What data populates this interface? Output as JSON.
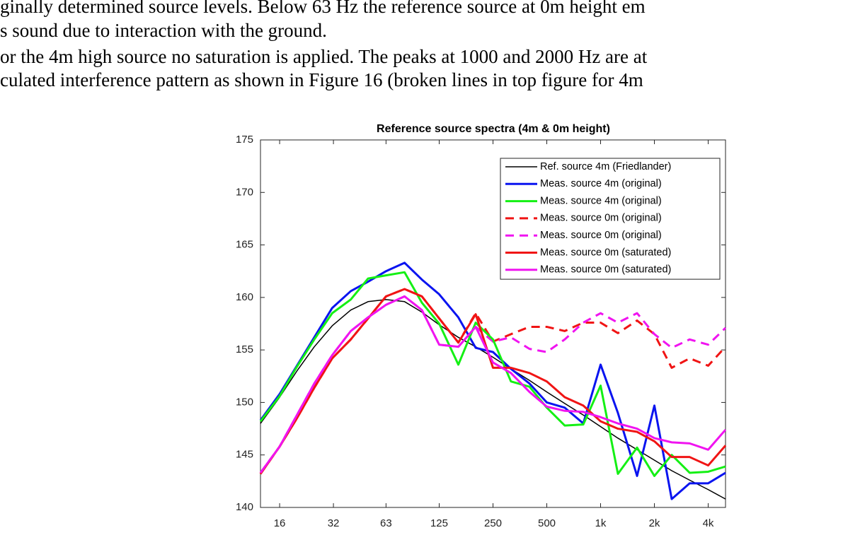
{
  "text": {
    "lines": [
      "ginally determined source levels. Below 63 Hz the reference source at 0m height em",
      "s sound due to interaction with the ground.",
      "or the 4m high source no saturation is applied. The peaks at 1000 and 2000 Hz are at",
      "culated interference pattern as shown in Figure 16 (broken lines in top figure for 4m"
    ]
  },
  "chart_data": {
    "type": "line",
    "title": "Reference source spectra (4m & 0m height)",
    "x": [
      12.5,
      16,
      20,
      25,
      31.5,
      40,
      50,
      63,
      80,
      100,
      125,
      160,
      200,
      250,
      315,
      400,
      500,
      630,
      800,
      1000,
      1250,
      1600,
      2000,
      2500,
      3150,
      4000,
      5000
    ],
    "xscale": "log",
    "xlim": [
      12.5,
      5000
    ],
    "xticks": [
      16,
      32,
      63,
      125,
      250,
      500,
      {
        "value": 1000,
        "label": "1k"
      },
      {
        "value": 2000,
        "label": "2k"
      },
      {
        "value": 4000,
        "label": "4k"
      }
    ],
    "ylim": [
      140,
      175
    ],
    "yticks": [
      140,
      145,
      150,
      155,
      160,
      165,
      170,
      175
    ],
    "grid": false,
    "legend": "top-right",
    "series": [
      {
        "name": "Ref. source 4m (Friedlander)",
        "color": "#000000",
        "dash": "solid",
        "width": 1.5,
        "values": [
          148,
          150.5,
          153,
          155.3,
          157.3,
          158.8,
          159.6,
          159.8,
          159.6,
          158.6,
          157.4,
          156.2,
          155.3,
          154.3,
          153.2,
          152.1,
          151,
          149.9,
          148.8,
          147.7,
          146.6,
          145.5,
          144.5,
          143.5,
          142.6,
          141.7,
          140.8
        ]
      },
      {
        "name": "Meas. source 4m (original)",
        "color": "#0a14f0",
        "dash": "solid",
        "width": 3,
        "values": [
          148.3,
          150.8,
          153.5,
          156.2,
          159,
          160.6,
          161.5,
          162.5,
          163.3,
          161.7,
          160.3,
          158.1,
          155.2,
          154.8,
          153.2,
          151.8,
          150,
          149.5,
          148,
          153.6,
          149,
          143,
          149.7,
          140.8,
          142.3,
          142.3,
          143.3
        ]
      },
      {
        "name": "Meas. source 4m (original)",
        "color": "#14f014",
        "dash": "solid",
        "width": 3,
        "values": [
          148.2,
          150.6,
          153.4,
          156,
          158.5,
          159.8,
          161.8,
          162.1,
          162.4,
          159.5,
          157.5,
          153.6,
          157.6,
          156,
          152,
          151.5,
          149.5,
          147.8,
          147.9,
          151.6,
          143.2,
          145.7,
          143,
          145,
          143.3,
          143.4,
          143.9
        ]
      },
      {
        "name": "Meas. source 0m (original)",
        "color": "#f01414",
        "dash": "dashed",
        "width": 3,
        "values": [
          143.2,
          145.8,
          148.5,
          151.4,
          154.2,
          156,
          158,
          160.1,
          160.8,
          160.1,
          158,
          155.7,
          158.5,
          155.8,
          156.5,
          157.2,
          157.2,
          156.8,
          157.6,
          157.6,
          156.6,
          157.8,
          156.5,
          153.3,
          154.2,
          153.5,
          155.3
        ]
      },
      {
        "name": "Meas. source 0m (original)",
        "color": "#f014f0",
        "dash": "dashed",
        "width": 3,
        "values": [
          143.3,
          145.8,
          148.8,
          151.8,
          154.5,
          156.8,
          158.1,
          159.3,
          160.1,
          158.8,
          155.5,
          155.3,
          157.2,
          155.8,
          156.2,
          155.1,
          154.8,
          156,
          157.6,
          158.5,
          157.6,
          158.5,
          156.5,
          155.2,
          156,
          155.5,
          157.1
        ]
      },
      {
        "name": "Meas. source 0m (saturated)",
        "color": "#f01414",
        "dash": "solid",
        "width": 3,
        "values": [
          143.2,
          145.8,
          148.5,
          151.4,
          154.2,
          156,
          158,
          160.1,
          160.8,
          160.1,
          158,
          155.7,
          158.4,
          153.3,
          153.3,
          152.8,
          152,
          150.5,
          149.7,
          148.2,
          147.5,
          147.2,
          146.3,
          144.8,
          144.8,
          144,
          145.9
        ]
      },
      {
        "name": "Meas. source 0m (saturated)",
        "color": "#f014f0",
        "dash": "solid",
        "width": 3,
        "values": [
          143.3,
          145.8,
          148.8,
          151.8,
          154.5,
          156.8,
          158.1,
          159.3,
          160.1,
          158.8,
          155.5,
          155.3,
          157.2,
          153.8,
          152.8,
          151,
          149.6,
          149.2,
          149.1,
          148.6,
          148,
          147.5,
          146.6,
          146.2,
          146.1,
          145.5,
          147.4
        ]
      }
    ]
  }
}
